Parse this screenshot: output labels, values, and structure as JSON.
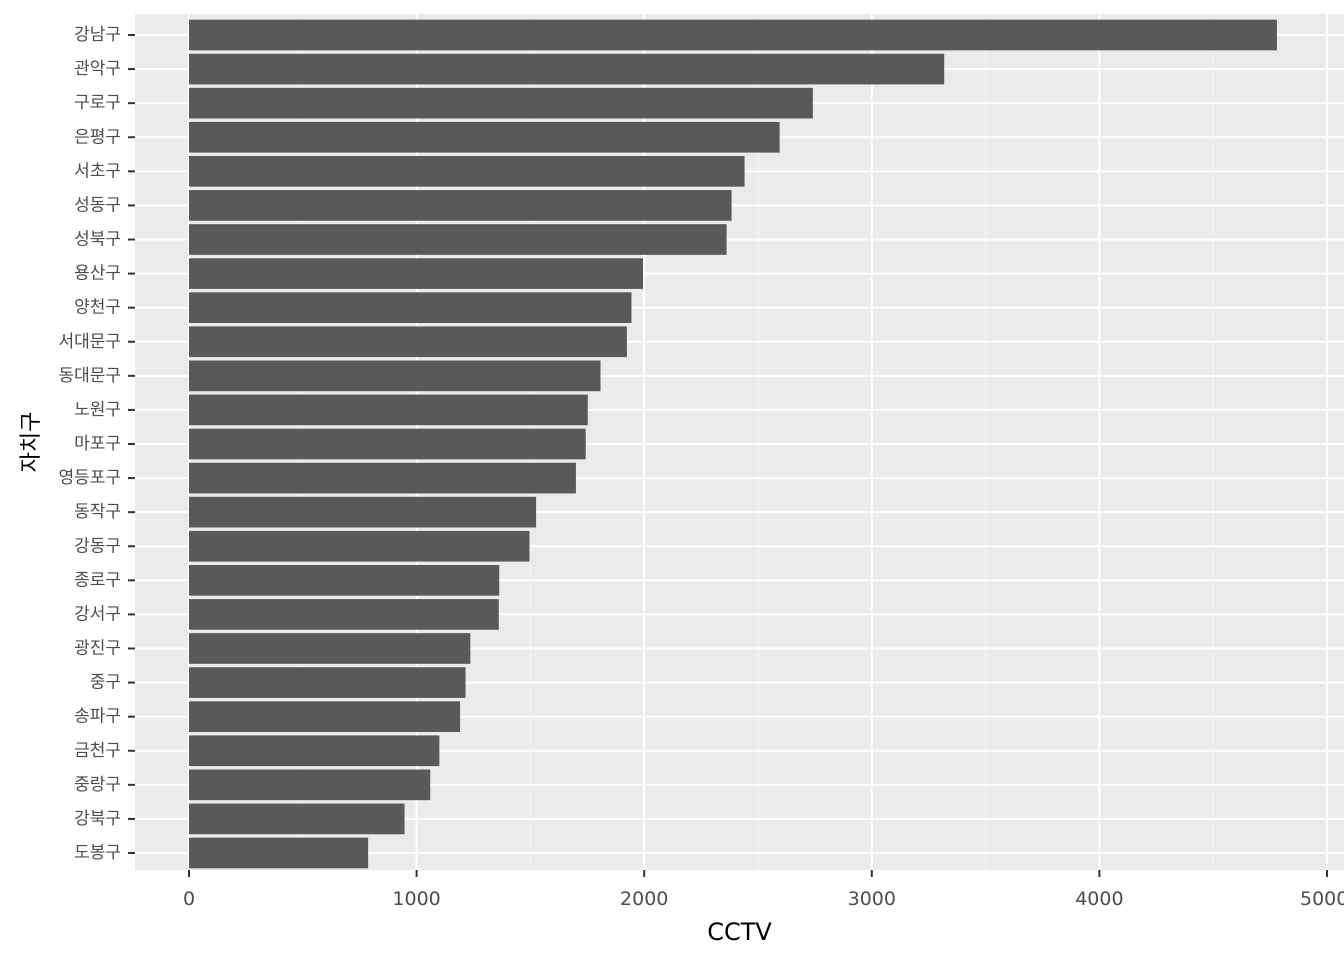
{
  "chart_data": {
    "type": "bar",
    "orientation": "horizontal",
    "title": "",
    "xlabel": "CCTV",
    "ylabel": "자치구",
    "xlim": [
      -236,
      5000
    ],
    "x_ticks": [
      0,
      1000,
      2000,
      3000,
      4000,
      5000
    ],
    "x_tick_labels": [
      "0",
      "1000",
      "2000",
      "3000",
      "4000",
      "5000"
    ],
    "grid": true,
    "legend": "none",
    "categories": [
      "강남구",
      "관악구",
      "구로구",
      "은평구",
      "서초구",
      "성동구",
      "성북구",
      "용산구",
      "양천구",
      "서대문구",
      "동대문구",
      "노원구",
      "마포구",
      "영등포구",
      "동작구",
      "강동구",
      "종로구",
      "강서구",
      "광진구",
      "중구",
      "송파구",
      "금천구",
      "중랑구",
      "강북구",
      "도봉구"
    ],
    "values": [
      4780,
      3318,
      2741,
      2595,
      2441,
      2384,
      2362,
      1995,
      1944,
      1924,
      1808,
      1752,
      1743,
      1700,
      1525,
      1496,
      1363,
      1361,
      1236,
      1215,
      1191,
      1100,
      1060,
      947,
      787
    ],
    "colors": {
      "bar": "#595959",
      "panel": "#ebebeb",
      "grid_major": "#ffffff",
      "grid_minor": "#f5f5f5",
      "axis_text": "#4d4d4d",
      "axis_title": "#000000",
      "background": "#ffffff"
    }
  }
}
